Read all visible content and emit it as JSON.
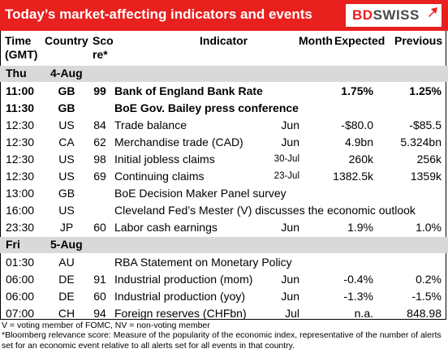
{
  "header": {
    "title": "Today’s market-affecting indicators and events",
    "logo_bd": "BD",
    "logo_swiss": "SWISS"
  },
  "columns": {
    "time": "Time",
    "time2": "(GMT)",
    "country": "Country",
    "score": "Sco",
    "score2": "re*",
    "indicator": "Indicator",
    "month": "Month",
    "expected": "Expected",
    "previous": "Previous"
  },
  "day1": {
    "dow": "Thu",
    "date": "4-Aug"
  },
  "rows1": [
    {
      "time": "11:00",
      "country": "GB",
      "score": "99",
      "indicator": "Bank of England Bank Rate",
      "month": "",
      "expected": "1.75%",
      "previous": "1.25%",
      "bold": true
    },
    {
      "time": "11:30",
      "country": "GB",
      "score": "",
      "indicator": "BoE Gov. Bailey press conference",
      "month": "",
      "expected": "",
      "previous": "",
      "bold": true
    },
    {
      "time": "12:30",
      "country": "US",
      "score": "84",
      "indicator": "Trade balance",
      "month": "Jun",
      "expected": "-$80.0",
      "previous": "-$85.5"
    },
    {
      "time": "12:30",
      "country": "CA",
      "score": "62",
      "indicator": "Merchandise trade (CAD)",
      "month": "Jun",
      "expected": "4.9bn",
      "previous": "5.324bn"
    },
    {
      "time": "12:30",
      "country": "US",
      "score": "98",
      "indicator": "Initial jobless claims",
      "month": "30-Jul",
      "expected": "260k",
      "previous": "256k",
      "small": true
    },
    {
      "time": "12:30",
      "country": "US",
      "score": "69",
      "indicator": "Continuing claims",
      "month": "23-Jul",
      "expected": "1382.5k",
      "previous": "1359k",
      "small": true
    },
    {
      "time": "13:00",
      "country": "GB",
      "score": "",
      "indicator": "BoE Decision Maker Panel survey",
      "month": "",
      "expected": "",
      "previous": ""
    },
    {
      "time": "16:00",
      "country": "US",
      "score": "",
      "indicator": "Cleveland Fed’s Mester (V) discusses the economic outlook",
      "month": "",
      "expected": "",
      "previous": ""
    },
    {
      "time": "23:30",
      "country": "JP",
      "score": "60",
      "indicator": "Labor cash earnings",
      "month": "Jun",
      "expected": "1.9%",
      "previous": "1.0%"
    }
  ],
  "day2": {
    "dow": "Fri",
    "date": "5-Aug"
  },
  "rows2": [
    {
      "time": "01:30",
      "country": "AU",
      "score": "",
      "indicator": "RBA Statement on Monetary Policy",
      "month": "",
      "expected": "",
      "previous": ""
    },
    {
      "time": "06:00",
      "country": "DE",
      "score": "91",
      "indicator": "Industrial production (mom)",
      "month": "Jun",
      "expected": "-0.4%",
      "previous": "0.2%"
    },
    {
      "time": "06:00",
      "country": "DE",
      "score": "60",
      "indicator": "Industrial production (yoy)",
      "month": "Jun",
      "expected": "-1.3%",
      "previous": "-1.5%"
    },
    {
      "time": "07:00",
      "country": "CH",
      "score": "94",
      "indicator": "Foreign reserves (CHFbn)",
      "month": "Jul",
      "expected": "n.a.",
      "previous": "848.98"
    }
  ],
  "footer": {
    "line1": "V = voting member of FOMC, NV = non-voting member",
    "line2": "*Bloomberg relevance score:  Measure of the popularity of the economic index, representative of the number of alerts set for an economic event relative to all alerts set for all events in that country."
  }
}
